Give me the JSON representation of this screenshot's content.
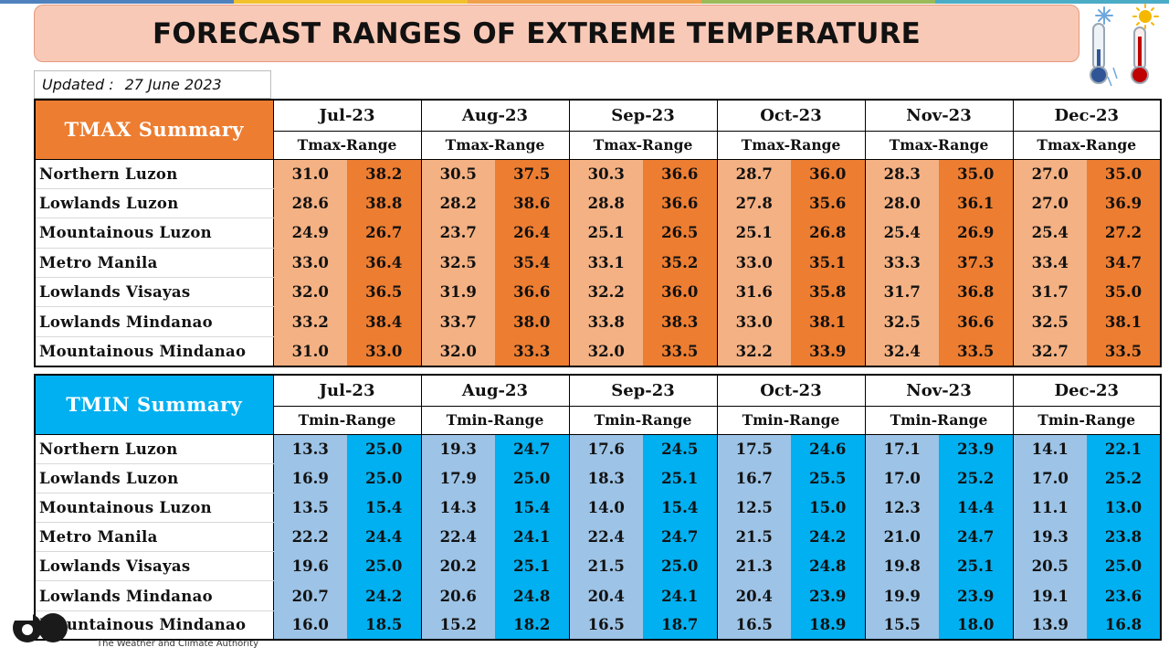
{
  "header": {
    "title": "FORECAST RANGES OF EXTREME TEMPERATURE",
    "updated_label": "Updated :",
    "updated_date": "27 June 2023",
    "topbar_colors": [
      "#4f81bd",
      "#f2c12e",
      "#f0a04b",
      "#9bbb59",
      "#4bacc6"
    ]
  },
  "icons": {
    "cold": "thermometer-snowflake-icon",
    "hot": "thermometer-sun-icon"
  },
  "footer": {
    "org_tagline": "The Weather and Climate Authority"
  },
  "colors": {
    "tmax_header": "#ed7d31",
    "tmax_low": "#f4b183",
    "tmax_high": "#ed7d31",
    "tmin_header": "#00b0f0",
    "tmin_low": "#9dc3e6",
    "tmin_high": "#00b0f0"
  },
  "months": [
    "Jul-23",
    "Aug-23",
    "Sep-23",
    "Oct-23",
    "Nov-23",
    "Dec-23"
  ],
  "regions": [
    "Northern Luzon",
    "Lowlands Luzon",
    "Mountainous Luzon",
    "Metro Manila",
    "Lowlands Visayas",
    "Lowlands Mindanao",
    "Mountainous Mindanao"
  ],
  "tmax": {
    "title": "TMAX Summary",
    "range_label": "Tmax-Range",
    "rows": [
      [
        [
          "31.0",
          "38.2"
        ],
        [
          "30.5",
          "37.5"
        ],
        [
          "30.3",
          "36.6"
        ],
        [
          "28.7",
          "36.0"
        ],
        [
          "28.3",
          "35.0"
        ],
        [
          "27.0",
          "35.0"
        ]
      ],
      [
        [
          "28.6",
          "38.8"
        ],
        [
          "28.2",
          "38.6"
        ],
        [
          "28.8",
          "36.6"
        ],
        [
          "27.8",
          "35.6"
        ],
        [
          "28.0",
          "36.1"
        ],
        [
          "27.0",
          "36.9"
        ]
      ],
      [
        [
          "24.9",
          "26.7"
        ],
        [
          "23.7",
          "26.4"
        ],
        [
          "25.1",
          "26.5"
        ],
        [
          "25.1",
          "26.8"
        ],
        [
          "25.4",
          "26.9"
        ],
        [
          "25.4",
          "27.2"
        ]
      ],
      [
        [
          "33.0",
          "36.4"
        ],
        [
          "32.5",
          "35.4"
        ],
        [
          "33.1",
          "35.2"
        ],
        [
          "33.0",
          "35.1"
        ],
        [
          "33.3",
          "37.3"
        ],
        [
          "33.4",
          "34.7"
        ]
      ],
      [
        [
          "32.0",
          "36.5"
        ],
        [
          "31.9",
          "36.6"
        ],
        [
          "32.2",
          "36.0"
        ],
        [
          "31.6",
          "35.8"
        ],
        [
          "31.7",
          "36.8"
        ],
        [
          "31.7",
          "35.0"
        ]
      ],
      [
        [
          "33.2",
          "38.4"
        ],
        [
          "33.7",
          "38.0"
        ],
        [
          "33.8",
          "38.3"
        ],
        [
          "33.0",
          "38.1"
        ],
        [
          "32.5",
          "36.6"
        ],
        [
          "32.5",
          "38.1"
        ]
      ],
      [
        [
          "31.0",
          "33.0"
        ],
        [
          "32.0",
          "33.3"
        ],
        [
          "32.0",
          "33.5"
        ],
        [
          "32.2",
          "33.9"
        ],
        [
          "32.4",
          "33.5"
        ],
        [
          "32.7",
          "33.5"
        ]
      ]
    ]
  },
  "tmin": {
    "title": "TMIN Summary",
    "range_label": "Tmin-Range",
    "rows": [
      [
        [
          "13.3",
          "25.0"
        ],
        [
          "19.3",
          "24.7"
        ],
        [
          "17.6",
          "24.5"
        ],
        [
          "17.5",
          "24.6"
        ],
        [
          "17.1",
          "23.9"
        ],
        [
          "14.1",
          "22.1"
        ]
      ],
      [
        [
          "16.9",
          "25.0"
        ],
        [
          "17.9",
          "25.0"
        ],
        [
          "18.3",
          "25.1"
        ],
        [
          "16.7",
          "25.5"
        ],
        [
          "17.0",
          "25.2"
        ],
        [
          "17.0",
          "25.2"
        ]
      ],
      [
        [
          "13.5",
          "15.4"
        ],
        [
          "14.3",
          "15.4"
        ],
        [
          "14.0",
          "15.4"
        ],
        [
          "12.5",
          "15.0"
        ],
        [
          "12.3",
          "14.4"
        ],
        [
          "11.1",
          "13.0"
        ]
      ],
      [
        [
          "22.2",
          "24.4"
        ],
        [
          "22.4",
          "24.1"
        ],
        [
          "22.4",
          "24.7"
        ],
        [
          "21.5",
          "24.2"
        ],
        [
          "21.0",
          "24.7"
        ],
        [
          "19.3",
          "23.8"
        ]
      ],
      [
        [
          "19.6",
          "25.0"
        ],
        [
          "20.2",
          "25.1"
        ],
        [
          "21.5",
          "25.0"
        ],
        [
          "21.3",
          "24.8"
        ],
        [
          "19.8",
          "25.1"
        ],
        [
          "20.5",
          "25.0"
        ]
      ],
      [
        [
          "20.7",
          "24.2"
        ],
        [
          "20.6",
          "24.8"
        ],
        [
          "20.4",
          "24.1"
        ],
        [
          "20.4",
          "23.9"
        ],
        [
          "19.9",
          "23.9"
        ],
        [
          "19.1",
          "23.6"
        ]
      ],
      [
        [
          "16.0",
          "18.5"
        ],
        [
          "15.2",
          "18.2"
        ],
        [
          "16.5",
          "18.7"
        ],
        [
          "16.5",
          "18.9"
        ],
        [
          "15.5",
          "18.0"
        ],
        [
          "13.9",
          "16.8"
        ]
      ]
    ]
  }
}
